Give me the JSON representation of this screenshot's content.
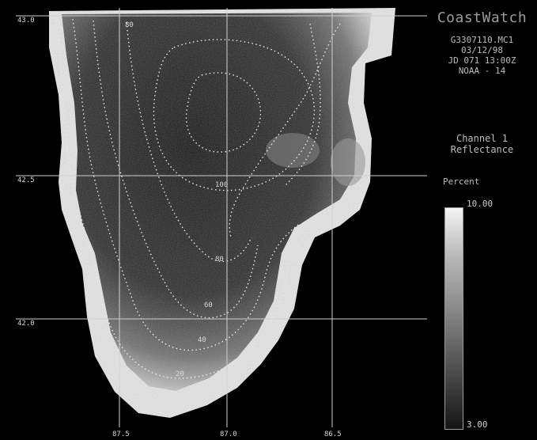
{
  "header": {
    "title": "CoastWatch",
    "image_id": "G3307110.MC1",
    "date": "03/12/98",
    "julian_time": "JD 071 13:00Z",
    "satellite": "NOAA - 14"
  },
  "channel": {
    "line1": "Channel 1",
    "line2": "Reflectance"
  },
  "legend": {
    "unit": "Percent",
    "max_label": "10.00",
    "min_label": "3.00",
    "min_value": 3.0,
    "max_value": 10.0
  },
  "map": {
    "lat_labels": [
      "43.0",
      "42.5",
      "42.0"
    ],
    "lon_labels": [
      "87.5",
      "87.0",
      "86.5"
    ],
    "contour_labels": [
      "80",
      "100",
      "80",
      "60",
      "40",
      "20"
    ],
    "colors": {
      "background": "#000000",
      "grid": "#d0d0d0",
      "contour": "#e8e8e8"
    }
  }
}
